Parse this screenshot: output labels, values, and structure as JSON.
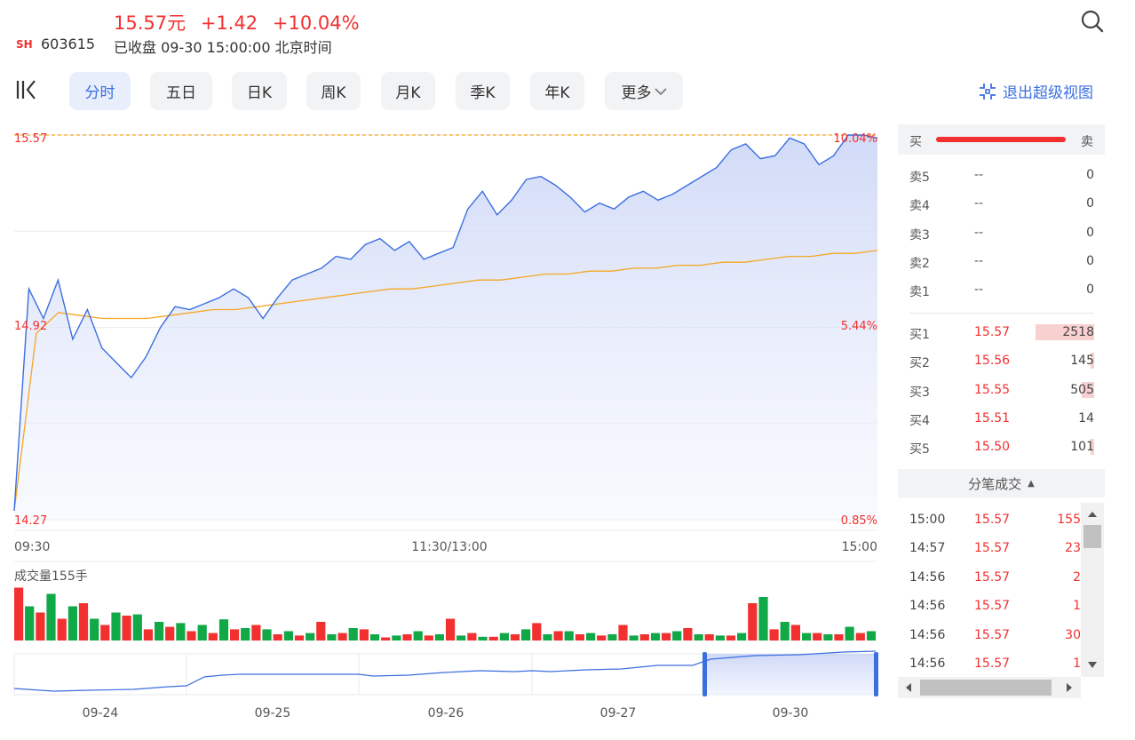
{
  "header": {
    "price": "15.57元",
    "change": "+1.42",
    "change_pct": "+10.04%",
    "market": "SH",
    "code": "603615",
    "status": "已收盘 09-30 15:00:00 北京时间"
  },
  "tabs": [
    "分时",
    "五日",
    "日K",
    "周K",
    "月K",
    "季K",
    "年K",
    "更多"
  ],
  "active_tab": "分时",
  "exit_super_view": "退出超级视图",
  "icons": {
    "search": "search-icon",
    "collapse": "collapse-sidebar-icon",
    "exit": "exit-fullscreen-icon",
    "more": "chevron-down-icon"
  },
  "colors": {
    "up": "#f23030",
    "down": "#11a848",
    "price_line": "#3b6fe0",
    "avg_line": "#f5a623",
    "accent": "#3b6fe0"
  },
  "chart_data": {
    "type": "line",
    "y_left_labels": [
      "15.57",
      "14.92",
      "14.27"
    ],
    "y_right_labels": [
      "10.04%",
      "5.44%",
      "0.85%"
    ],
    "x_labels": [
      "09:30",
      "11:30/13:00",
      "15:00"
    ],
    "ylim": [
      14.27,
      15.57
    ],
    "limit_up": 15.57,
    "price_series": [
      14.3,
      15.05,
      14.95,
      15.08,
      14.88,
      14.98,
      14.85,
      14.8,
      14.75,
      14.82,
      14.92,
      14.99,
      14.98,
      15.0,
      15.02,
      15.05,
      15.02,
      14.95,
      15.02,
      15.08,
      15.1,
      15.12,
      15.16,
      15.15,
      15.2,
      15.22,
      15.18,
      15.21,
      15.15,
      15.17,
      15.19,
      15.32,
      15.38,
      15.3,
      15.35,
      15.42,
      15.43,
      15.4,
      15.36,
      15.31,
      15.34,
      15.32,
      15.36,
      15.38,
      15.35,
      15.37,
      15.4,
      15.43,
      15.46,
      15.52,
      15.54,
      15.49,
      15.5,
      15.56,
      15.54,
      15.47,
      15.5,
      15.57,
      15.57,
      15.56
    ],
    "avg_series": [
      14.3,
      14.9,
      14.97,
      14.96,
      14.95,
      14.95,
      14.95,
      14.96,
      14.97,
      14.98,
      14.98,
      14.99,
      15.0,
      15.01,
      15.02,
      15.03,
      15.04,
      15.05,
      15.05,
      15.06,
      15.07,
      15.08,
      15.08,
      15.09,
      15.1,
      15.1,
      15.11,
      15.11,
      15.12,
      15.12,
      15.13,
      15.13,
      15.14,
      15.14,
      15.15,
      15.16,
      15.16,
      15.17,
      15.17,
      15.18
    ],
    "volume_label": "成交量155手",
    "volume_up": [
      0.55,
      0.75,
      0.55,
      0.35,
      0.45,
      0.42,
      0.3,
      0.28,
      0.25,
      0.34,
      0.2,
      0.18,
      0.15,
      0.12,
      0.1,
      0.2,
      0.1,
      0.08,
      0.15,
      0.1,
      0.08,
      0.06,
      0.12,
      0.18,
      0.1,
      0.15,
      0.12,
      0.1,
      0.08,
      0.12,
      0.15,
      0.1,
      0.08,
      0.12,
      0.7,
      0.3,
      0.12,
      0.1,
      0.22,
      0.15
    ],
    "volume_down": [
      0.85,
      0.45,
      0.35,
      0.6,
      0.25,
      0.4,
      0.18,
      0.22,
      0.15,
      0.12,
      0.18,
      0.25,
      0.1,
      0.08,
      0.3,
      0.12,
      0.18,
      0.05,
      0.1,
      0.08,
      0.35,
      0.12,
      0.06,
      0.1,
      0.28,
      0.15,
      0.1,
      0.08,
      0.25,
      0.1,
      0.12,
      0.2,
      0.1,
      0.08,
      0.6,
      0.18,
      0.25,
      0.12,
      0.1,
      0.12
    ],
    "overview_dates": [
      "09-24",
      "09-25",
      "09-26",
      "09-27",
      "09-30"
    ]
  },
  "order_book": {
    "buy_label": "买",
    "sell_label": "卖",
    "asks": [
      {
        "label": "卖5",
        "price": "--",
        "qty": "0"
      },
      {
        "label": "卖4",
        "price": "--",
        "qty": "0"
      },
      {
        "label": "卖3",
        "price": "--",
        "qty": "0"
      },
      {
        "label": "卖2",
        "price": "--",
        "qty": "0"
      },
      {
        "label": "卖1",
        "price": "--",
        "qty": "0"
      }
    ],
    "bids": [
      {
        "label": "买1",
        "price": "15.57",
        "qty": "2518",
        "bar": 0.95
      },
      {
        "label": "买2",
        "price": "15.56",
        "qty": "145",
        "bar": 0.05
      },
      {
        "label": "买3",
        "price": "15.55",
        "qty": "505",
        "bar": 0.2
      },
      {
        "label": "买4",
        "price": "15.51",
        "qty": "14",
        "bar": 0.0
      },
      {
        "label": "买5",
        "price": "15.50",
        "qty": "101",
        "bar": 0.04
      }
    ]
  },
  "ticks": {
    "title": "分笔成交",
    "rows": [
      {
        "time": "15:00",
        "price": "15.57",
        "vol": "155",
        "dir": "up"
      },
      {
        "time": "14:57",
        "price": "15.57",
        "vol": "23",
        "dir": "up"
      },
      {
        "time": "14:56",
        "price": "15.57",
        "vol": "2",
        "dir": "up"
      },
      {
        "time": "14:56",
        "price": "15.57",
        "vol": "1",
        "dir": "up"
      },
      {
        "time": "14:56",
        "price": "15.57",
        "vol": "30",
        "dir": "up"
      },
      {
        "time": "14:56",
        "price": "15.57",
        "vol": "1",
        "dir": "up"
      }
    ]
  }
}
